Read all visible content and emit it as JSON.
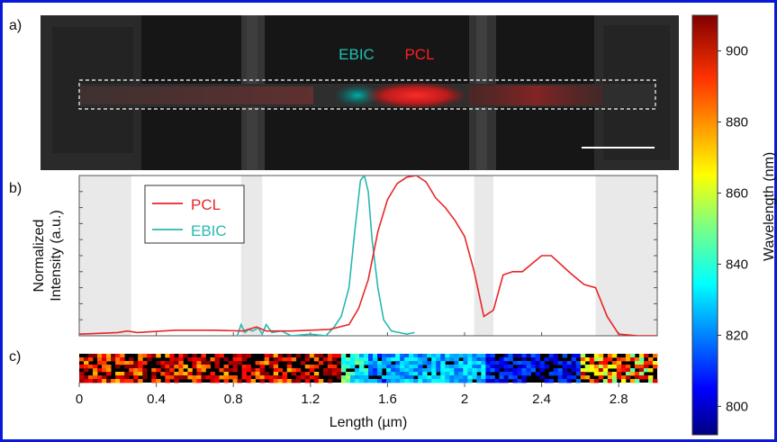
{
  "frame_color": "#0a19d8",
  "panels": {
    "a": {
      "label": "a)"
    },
    "b": {
      "label": "b)"
    },
    "c": {
      "label": "c)"
    }
  },
  "micrograph": {
    "ebic_label": "EBIC",
    "pcl_label": "PCL",
    "ebic_color": "#1fc1b6",
    "pcl_color": "#ff1e1e"
  },
  "colorbar": {
    "label": "Wavelength (nm)",
    "ticks": [
      "800",
      "820",
      "840",
      "860",
      "880",
      "900"
    ],
    "range": [
      792,
      910
    ]
  },
  "chart_data": {
    "type": "line",
    "xlabel": "Length (µm)",
    "ylabel": [
      "Normalized",
      "Intensity (a.u.)"
    ],
    "xlim": [
      0,
      3.0
    ],
    "ylim": [
      0,
      1
    ],
    "x_ticks": [
      "0",
      "0.4",
      "0.8",
      "1.2",
      "1.6",
      "2",
      "2.4",
      "2.8"
    ],
    "shaded_regions": [
      [
        0,
        0.27
      ],
      [
        0.84,
        0.95
      ],
      [
        2.05,
        2.15
      ],
      [
        2.68,
        3.0
      ]
    ],
    "legend_position": "top-left",
    "series": [
      {
        "name": "PCL",
        "color": "#e8262a",
        "x": [
          0,
          0.2,
          0.25,
          0.3,
          0.5,
          0.7,
          0.85,
          0.92,
          0.97,
          1.1,
          1.3,
          1.4,
          1.45,
          1.5,
          1.55,
          1.6,
          1.65,
          1.7,
          1.75,
          1.8,
          1.85,
          1.9,
          1.95,
          2.0,
          2.05,
          2.1,
          2.15,
          2.2,
          2.25,
          2.3,
          2.4,
          2.45,
          2.55,
          2.62,
          2.68,
          2.74,
          2.8,
          2.9,
          3.0
        ],
        "y": [
          0.01,
          0.02,
          0.03,
          0.02,
          0.035,
          0.035,
          0.03,
          0.055,
          0.03,
          0.03,
          0.04,
          0.07,
          0.17,
          0.35,
          0.65,
          0.85,
          0.95,
          0.99,
          1.0,
          0.96,
          0.86,
          0.8,
          0.72,
          0.62,
          0.4,
          0.12,
          0.16,
          0.38,
          0.4,
          0.4,
          0.5,
          0.5,
          0.39,
          0.32,
          0.3,
          0.12,
          0.01,
          0.0,
          0.0
        ]
      },
      {
        "name": "EBIC",
        "color": "#27b9b0",
        "x": [
          0.82,
          0.84,
          0.86,
          0.88,
          0.9,
          0.93,
          0.95,
          0.97,
          1.0,
          1.05,
          1.1,
          1.2,
          1.28,
          1.32,
          1.36,
          1.4,
          1.43,
          1.46,
          1.48,
          1.5,
          1.52,
          1.55,
          1.58,
          1.62,
          1.66,
          1.7,
          1.74
        ],
        "y": [
          0.0,
          0.07,
          0.02,
          0.04,
          0.03,
          0.05,
          0.01,
          0.07,
          0.02,
          0.03,
          0.0,
          0.01,
          0.0,
          0.05,
          0.12,
          0.3,
          0.65,
          0.97,
          1.0,
          0.9,
          0.6,
          0.3,
          0.1,
          0.03,
          0.02,
          0.01,
          0.02
        ]
      }
    ]
  }
}
